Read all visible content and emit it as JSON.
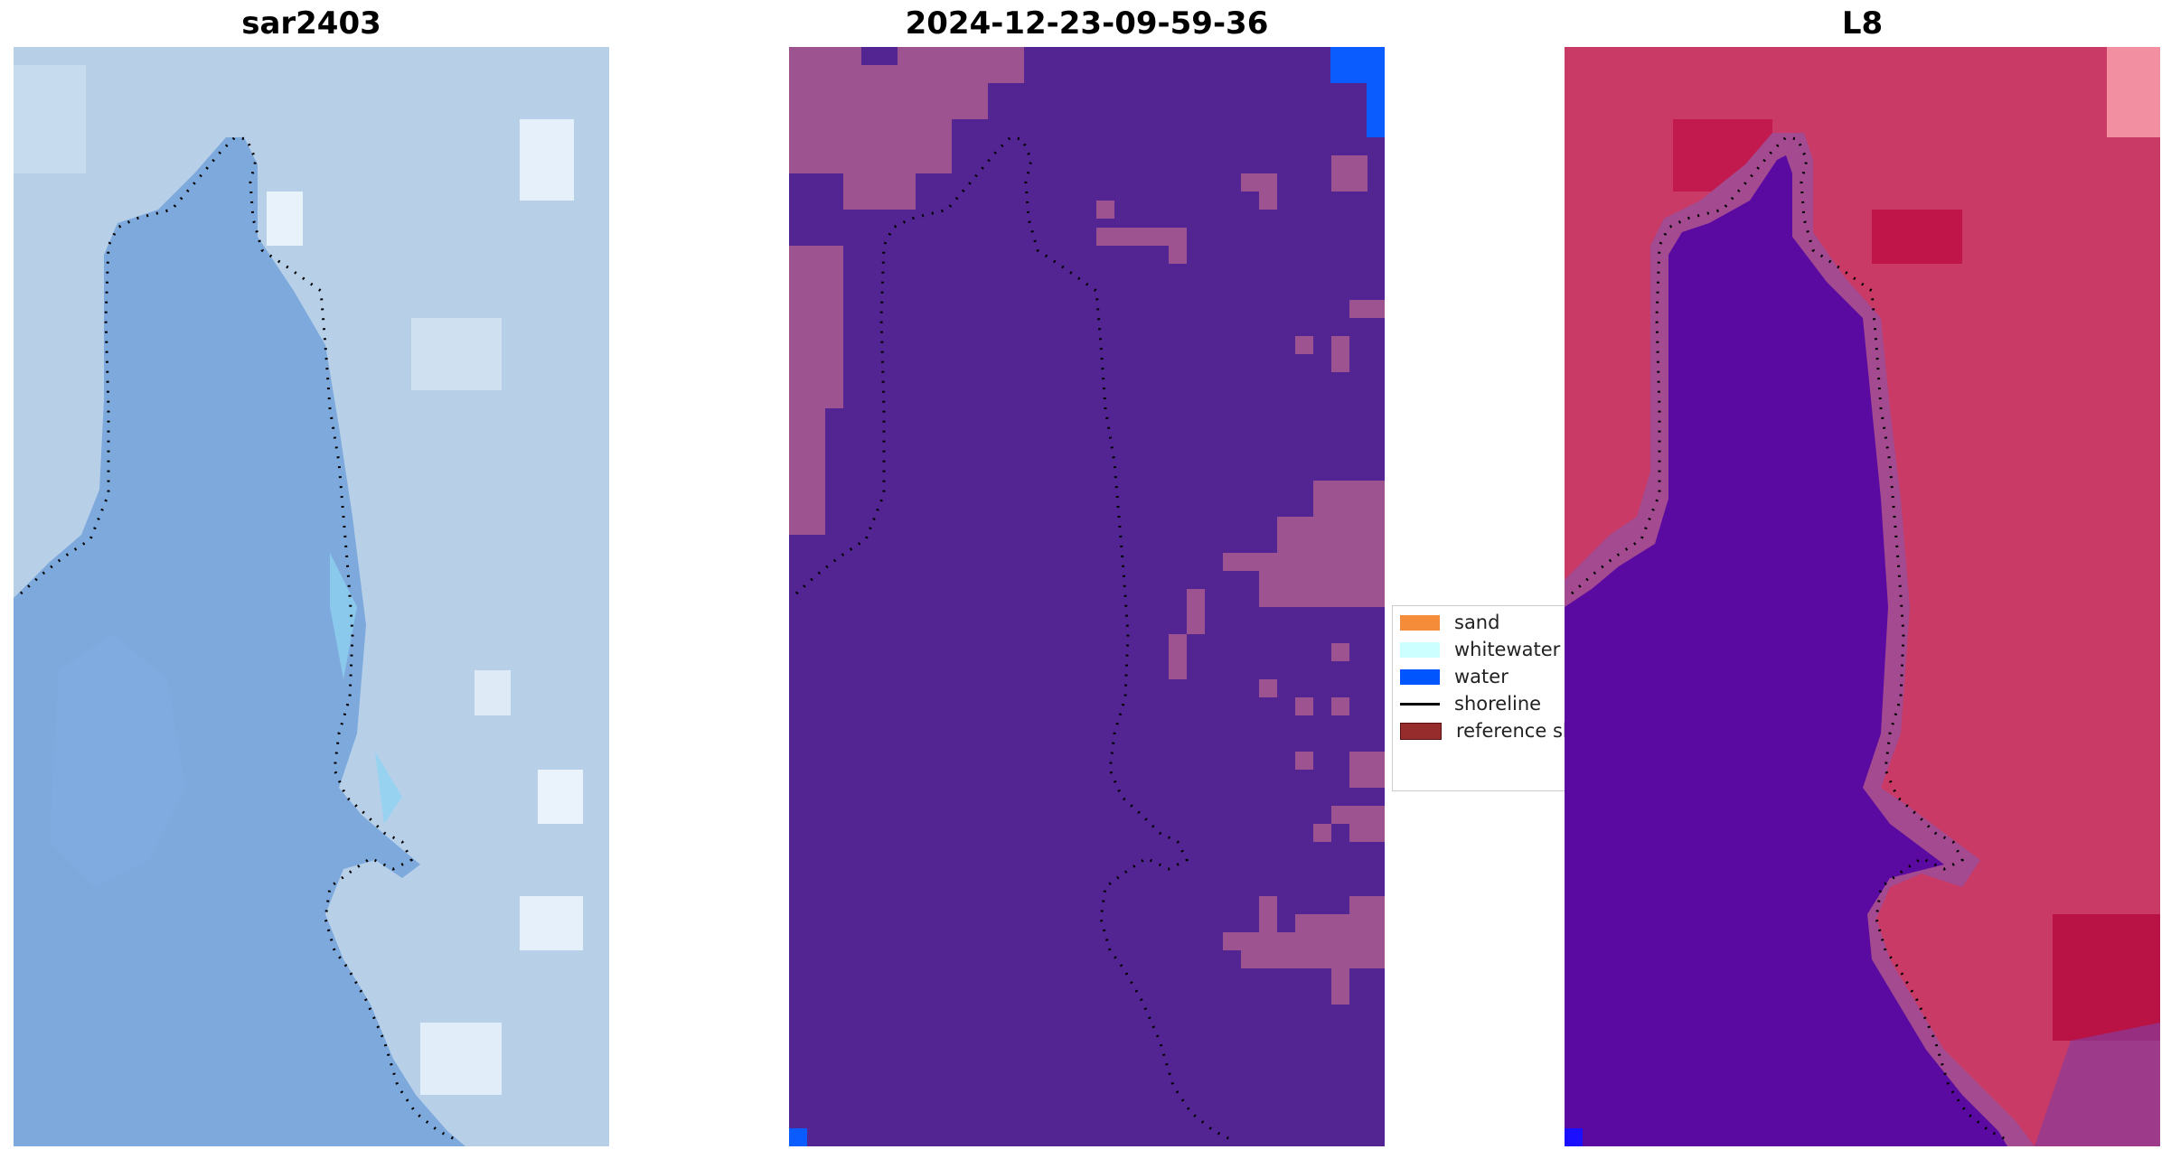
{
  "panels": [
    {
      "title": "sar2403",
      "image_kind": "rgb-satellite-image"
    },
    {
      "title": "2024-12-23-09-59-36",
      "image_kind": "classification-map"
    },
    {
      "title": "L8",
      "image_kind": "index-map"
    }
  ],
  "legend": {
    "items": [
      {
        "label": "sand",
        "kind": "patch",
        "color": "#f58c3a"
      },
      {
        "label": "whitewater",
        "kind": "patch",
        "color": "#ccffff"
      },
      {
        "label": "water",
        "kind": "patch",
        "color": "#0055ff"
      },
      {
        "label": "shoreline",
        "kind": "line",
        "color": "#000000"
      },
      {
        "label": "reference sh",
        "kind": "patch",
        "color": "#962c2c"
      }
    ]
  },
  "colors": {
    "sar_water": "#7eaee0",
    "sar_land": "#b4cfe6",
    "class_bg": "#532593",
    "class_patch": "#9c538f",
    "class_water": "#0a5cff",
    "index_land": "#c93a66",
    "index_water": "#5a0aa0"
  }
}
